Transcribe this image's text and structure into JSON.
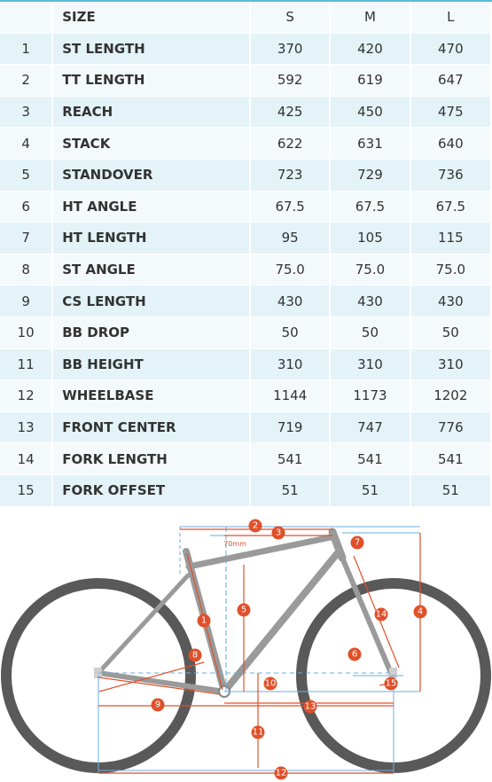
{
  "table": {
    "header": {
      "num": "",
      "label": "SIZE",
      "sizes": [
        "S",
        "M",
        "L"
      ]
    },
    "rows": [
      {
        "num": "1",
        "label": "ST LENGTH",
        "values": [
          "370",
          "420",
          "470"
        ]
      },
      {
        "num": "2",
        "label": "TT LENGTH",
        "values": [
          "592",
          "619",
          "647"
        ]
      },
      {
        "num": "3",
        "label": "REACH",
        "values": [
          "425",
          "450",
          "475"
        ]
      },
      {
        "num": "4",
        "label": "STACK",
        "values": [
          "622",
          "631",
          "640"
        ]
      },
      {
        "num": "5",
        "label": "STANDOVER",
        "values": [
          "723",
          "729",
          "736"
        ]
      },
      {
        "num": "6",
        "label": "HT ANGLE",
        "values": [
          "67.5",
          "67.5",
          "67.5"
        ]
      },
      {
        "num": "7",
        "label": "HT LENGTH",
        "values": [
          "95",
          "105",
          "115"
        ]
      },
      {
        "num": "8",
        "label": "ST ANGLE",
        "values": [
          "75.0",
          "75.0",
          "75.0"
        ]
      },
      {
        "num": "9",
        "label": "CS LENGTH",
        "values": [
          "430",
          "430",
          "430"
        ]
      },
      {
        "num": "10",
        "label": "BB DROP",
        "values": [
          "50",
          "50",
          "50"
        ]
      },
      {
        "num": "11",
        "label": "BB HEIGHT",
        "values": [
          "310",
          "310",
          "310"
        ]
      },
      {
        "num": "12",
        "label": "WHEELBASE",
        "values": [
          "1144",
          "1173",
          "1202"
        ]
      },
      {
        "num": "13",
        "label": "FRONT CENTER",
        "values": [
          "719",
          "747",
          "776"
        ]
      },
      {
        "num": "14",
        "label": "FORK LENGTH",
        "values": [
          "541",
          "541",
          "541"
        ]
      },
      {
        "num": "15",
        "label": "FORK OFFSET",
        "values": [
          "51",
          "51",
          "51"
        ]
      }
    ]
  },
  "diagram": {
    "standover_note": "70mm",
    "markers": [
      "1",
      "2",
      "3",
      "4",
      "5",
      "6",
      "7",
      "8",
      "9",
      "10",
      "11",
      "12",
      "13",
      "14",
      "15"
    ],
    "colors": {
      "accent": "#e0502a",
      "frame": "#9a9a9a",
      "tire": "#595959",
      "dim_blue": "#6aaee0",
      "header_line": "#5bbcd4"
    }
  }
}
